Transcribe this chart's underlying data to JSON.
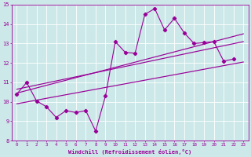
{
  "xlabel": "Windchill (Refroidissement éolien,°C)",
  "xlim": [
    -0.5,
    23.5
  ],
  "ylim": [
    8,
    15
  ],
  "xticks": [
    0,
    1,
    2,
    3,
    4,
    5,
    6,
    7,
    8,
    9,
    10,
    11,
    12,
    13,
    14,
    15,
    16,
    17,
    18,
    19,
    20,
    21,
    22,
    23
  ],
  "yticks": [
    8,
    9,
    10,
    11,
    12,
    13,
    14,
    15
  ],
  "line_color": "#990099",
  "bg_color": "#cce8e8",
  "data_line": {
    "x": [
      0,
      1,
      2,
      3,
      4,
      5,
      6,
      7,
      8,
      9,
      10,
      11,
      12,
      13,
      14,
      15,
      16,
      17,
      18,
      19,
      20,
      21,
      22
    ],
    "y": [
      10.4,
      11.0,
      10.05,
      9.75,
      9.2,
      9.55,
      9.45,
      9.55,
      8.5,
      10.3,
      13.1,
      12.55,
      12.5,
      14.5,
      14.8,
      13.7,
      14.3,
      13.55,
      13.0,
      13.05,
      13.1,
      12.1,
      12.2
    ]
  },
  "reg_line1": {
    "x": [
      0,
      23
    ],
    "y": [
      9.9,
      12.05
    ]
  },
  "reg_line2": {
    "x": [
      0,
      23
    ],
    "y": [
      10.45,
      13.5
    ]
  },
  "reg_line3": {
    "x": [
      0,
      23
    ],
    "y": [
      10.65,
      13.1
    ]
  }
}
